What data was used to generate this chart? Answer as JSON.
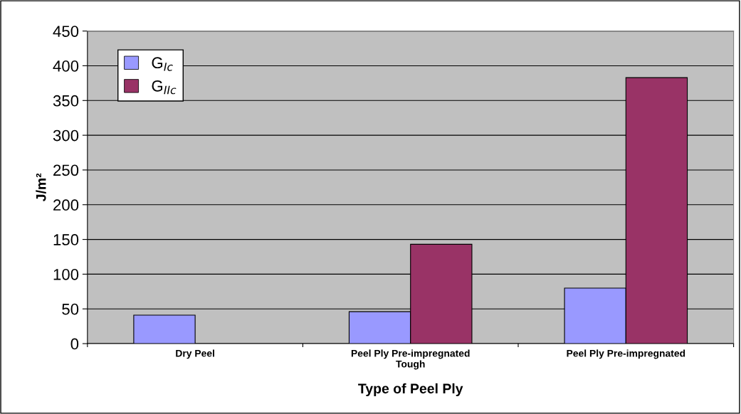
{
  "chart_data": {
    "type": "bar",
    "xlabel": "Type of Peel Ply",
    "ylabel": "J/m²",
    "categories": [
      "Dry Peel",
      "Peel Ply Pre-impregnated\nTough",
      "Peel Ply Pre-impregnated"
    ],
    "series": [
      {
        "name": "G$_{Ic}$",
        "color": "#9999ff",
        "values": [
          41,
          46,
          80
        ]
      },
      {
        "name": "G$_{IIc}$",
        "color": "#993366",
        "values": [
          null,
          143,
          383
        ]
      }
    ],
    "ylim": [
      0,
      450
    ],
    "yticks": [
      0,
      50,
      100,
      150,
      200,
      250,
      300,
      350,
      400,
      450
    ],
    "grid": "y",
    "legend": "top left"
  }
}
